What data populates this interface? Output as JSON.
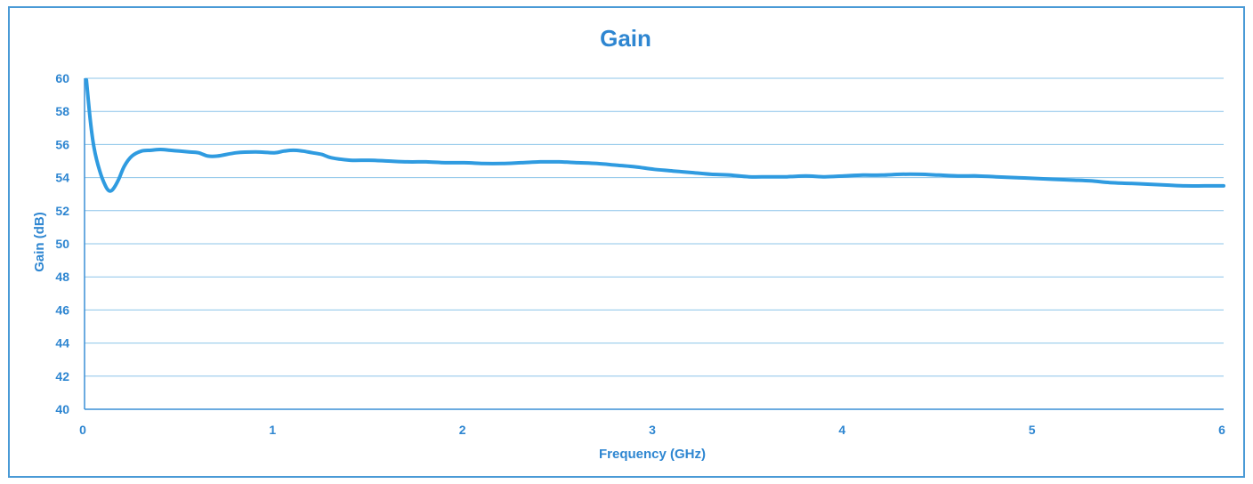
{
  "chart_data": {
    "type": "line",
    "title": "Gain",
    "xlabel": "Frequency (GHz)",
    "ylabel": "Gain (dB)",
    "xlim": [
      0,
      6
    ],
    "ylim": [
      40,
      60
    ],
    "x_ticks": [
      "0",
      "1",
      "2",
      "3",
      "4",
      "5",
      "6"
    ],
    "y_ticks": [
      "40",
      "42",
      "44",
      "46",
      "48",
      "50",
      "52",
      "54",
      "56",
      "58",
      "60"
    ],
    "grid": "horizontal",
    "legend": "none",
    "colors": {
      "line": "#2f9be0",
      "text": "#2e86d1",
      "grid": "#8cc4ea",
      "axis": "#3a8fd5"
    },
    "series": [
      {
        "x": [
          0.01,
          0.03,
          0.05,
          0.08,
          0.11,
          0.13,
          0.15,
          0.18,
          0.21,
          0.25,
          0.3,
          0.35,
          0.4,
          0.45,
          0.5,
          0.55,
          0.6,
          0.65,
          0.7,
          0.8,
          0.9,
          1.0,
          1.05,
          1.1,
          1.15,
          1.2,
          1.25,
          1.3,
          1.4,
          1.5,
          1.6,
          1.7,
          1.8,
          1.9,
          2.0,
          2.1,
          2.2,
          2.3,
          2.4,
          2.5,
          2.6,
          2.7,
          2.8,
          2.9,
          3.0,
          3.1,
          3.2,
          3.3,
          3.4,
          3.5,
          3.6,
          3.7,
          3.8,
          3.9,
          4.0,
          4.1,
          4.2,
          4.3,
          4.4,
          4.5,
          4.6,
          4.7,
          4.8,
          4.9,
          5.0,
          5.1,
          5.2,
          5.3,
          5.4,
          5.5,
          5.6,
          5.7,
          5.8,
          5.9,
          6.0
        ],
        "y": [
          59.9,
          57.5,
          55.8,
          54.4,
          53.5,
          53.2,
          53.3,
          53.9,
          54.7,
          55.3,
          55.6,
          55.65,
          55.7,
          55.65,
          55.6,
          55.55,
          55.5,
          55.3,
          55.3,
          55.5,
          55.55,
          55.5,
          55.6,
          55.65,
          55.6,
          55.5,
          55.4,
          55.2,
          55.05,
          55.05,
          55.0,
          54.95,
          54.95,
          54.9,
          54.9,
          54.85,
          54.85,
          54.9,
          54.95,
          54.95,
          54.9,
          54.85,
          54.75,
          54.65,
          54.5,
          54.4,
          54.3,
          54.2,
          54.15,
          54.05,
          54.05,
          54.05,
          54.1,
          54.05,
          54.1,
          54.15,
          54.15,
          54.2,
          54.2,
          54.15,
          54.1,
          54.1,
          54.05,
          54.0,
          53.95,
          53.9,
          53.85,
          53.8,
          53.7,
          53.65,
          53.6,
          53.55,
          53.5,
          53.5,
          53.5
        ]
      }
    ]
  }
}
